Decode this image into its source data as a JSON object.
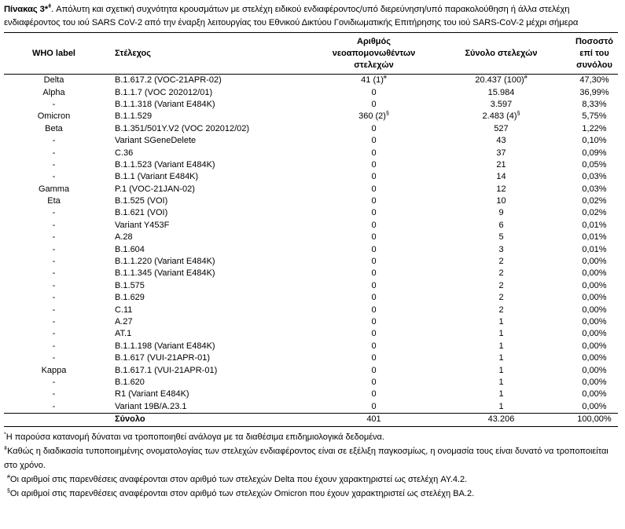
{
  "title": {
    "label": "Πίνακας 3*",
    "label_sup": "ǂ",
    "text": ". Απόλυτη και σχετική συχνότητα κρουσμάτων με στελέχη ειδικού ενδιαφέροντος/υπό διερεύνηση/υπό παρακολούθηση ή άλλα στελέχη ενδιαφέροντος του ιού SARS CoV-2 από την έναρξη λειτουργίας του Εθνικού Δικτύου Γονιδιωματικής Επιτήρησης του ιού SARS-CoV-2 μέχρι σήμερα"
  },
  "headers": [
    "WHO label",
    "Στέλεχος",
    "Αριθμός νεοαπομονωθέντων στελεχών",
    "Σύνολο στελεχών",
    "Ποσοστό επί του συνόλου"
  ],
  "rows": [
    {
      "who": "Delta",
      "strain": "B.1.617.2 (VOC-21APR-02)",
      "new": "41 (1)",
      "new_sup": "#",
      "total": "20.437 (100)",
      "total_sup": "#",
      "pct": "47,30%"
    },
    {
      "who": "Alpha",
      "strain": "B.1.1.7 (VOC 202012/01)",
      "new": "0",
      "total": "15.984",
      "pct": "36,99%"
    },
    {
      "who": "-",
      "strain": "B.1.1.318 (Variant E484K)",
      "new": "0",
      "total": "3.597",
      "pct": "8,33%"
    },
    {
      "who": "Omicron",
      "strain": "B.1.1.529",
      "new": "360 (2)",
      "new_sup": "§",
      "total": "2.483 (4)",
      "total_sup": "§",
      "pct": "5,75%"
    },
    {
      "who": "Beta",
      "strain": "B.1.351/501Y.V2 (VOC 202012/02)",
      "new": "0",
      "total": "527",
      "pct": "1,22%"
    },
    {
      "who": "-",
      "strain": "Variant SGeneDelete",
      "new": "0",
      "total": "43",
      "pct": "0,10%"
    },
    {
      "who": "-",
      "strain": "C.36",
      "new": "0",
      "total": "37",
      "pct": "0,09%"
    },
    {
      "who": "-",
      "strain": "B.1.1.523 (Variant E484K)",
      "new": "0",
      "total": "21",
      "pct": "0,05%"
    },
    {
      "who": "-",
      "strain": "B.1.1 (Variant E484K)",
      "new": "0",
      "total": "14",
      "pct": "0,03%"
    },
    {
      "who": "Gamma",
      "strain": "P.1 (VOC-21JAN-02)",
      "new": "0",
      "total": "12",
      "pct": "0,03%"
    },
    {
      "who": "Eta",
      "strain": "B.1.525 (VOI)",
      "new": "0",
      "total": "10",
      "pct": "0,02%"
    },
    {
      "who": "-",
      "strain": "B.1.621 (VOI)",
      "new": "0",
      "total": "9",
      "pct": "0,02%"
    },
    {
      "who": "-",
      "strain": "Variant Y453F",
      "new": "0",
      "total": "6",
      "pct": "0,01%"
    },
    {
      "who": "-",
      "strain": "A.28",
      "new": "0",
      "total": "5",
      "pct": "0,01%"
    },
    {
      "who": "-",
      "strain": "B.1.604",
      "new": "0",
      "total": "3",
      "pct": "0,01%"
    },
    {
      "who": "-",
      "strain": "B.1.1.220 (Variant E484K)",
      "new": "0",
      "total": "2",
      "pct": "0,00%"
    },
    {
      "who": "-",
      "strain": "B.1.1.345 (Variant E484K)",
      "new": "0",
      "total": "2",
      "pct": "0,00%"
    },
    {
      "who": "-",
      "strain": "B.1.575",
      "new": "0",
      "total": "2",
      "pct": "0,00%"
    },
    {
      "who": "-",
      "strain": "B.1.629",
      "new": "0",
      "total": "2",
      "pct": "0,00%"
    },
    {
      "who": "-",
      "strain": "C.11",
      "new": "0",
      "total": "2",
      "pct": "0,00%"
    },
    {
      "who": "-",
      "strain": "A.27",
      "new": "0",
      "total": "1",
      "pct": "0,00%"
    },
    {
      "who": "-",
      "strain": "AT.1",
      "new": "0",
      "total": "1",
      "pct": "0,00%"
    },
    {
      "who": "-",
      "strain": "B.1.1.198 (Variant E484K)",
      "new": "0",
      "total": "1",
      "pct": "0,00%"
    },
    {
      "who": "-",
      "strain": "B.1.617 (VUI-21APR-01)",
      "new": "0",
      "total": "1",
      "pct": "0,00%"
    },
    {
      "who": "Kappa",
      "strain": "B.1.617.1 (VUI-21APR-01)",
      "new": "0",
      "total": "1",
      "pct": "0,00%"
    },
    {
      "who": "-",
      "strain": "B.1.620",
      "new": "0",
      "total": "1",
      "pct": "0,00%"
    },
    {
      "who": "-",
      "strain": "R1 (Variant E484K)",
      "new": "0",
      "total": "1",
      "pct": "0,00%"
    },
    {
      "who": "-",
      "strain": "Variant 19B/A.23.1",
      "new": "0",
      "total": "1",
      "pct": "0,00%"
    }
  ],
  "total_row": {
    "label": "Σύνολο",
    "new": "401",
    "total": "43.206",
    "pct": "100,00%"
  },
  "notes": [
    {
      "mark": "*",
      "text": "Η παρούσα κατανομή δύναται να τροποποιηθεί ανάλογα με τα διαθέσιμα επιδημιολογικά δεδομένα."
    },
    {
      "mark": "ǂ",
      "text": "Καθώς η διαδικασία τυποποιημένης ονοματολογίας των στελεχών ενδιαφέροντος είναι σε εξέλιξη παγκοσμίως, η ονομασία τους είναι δυνατό να τροποποιείται στο χρόνο."
    },
    {
      "mark": "#",
      "text": "Οι αριθμοί στις παρενθέσεις αναφέρονται στον αριθμό των στελεχών Delta που έχουν χαρακτηριστεί ως στελέχη AY.4.2."
    },
    {
      "mark": "§",
      "text": "Οι αριθμοί στις παρενθέσεις αναφέρονται στον αριθμό των στελεχών Omicron που έχουν χαρακτηριστεί ως στελέχη BA.2."
    }
  ]
}
